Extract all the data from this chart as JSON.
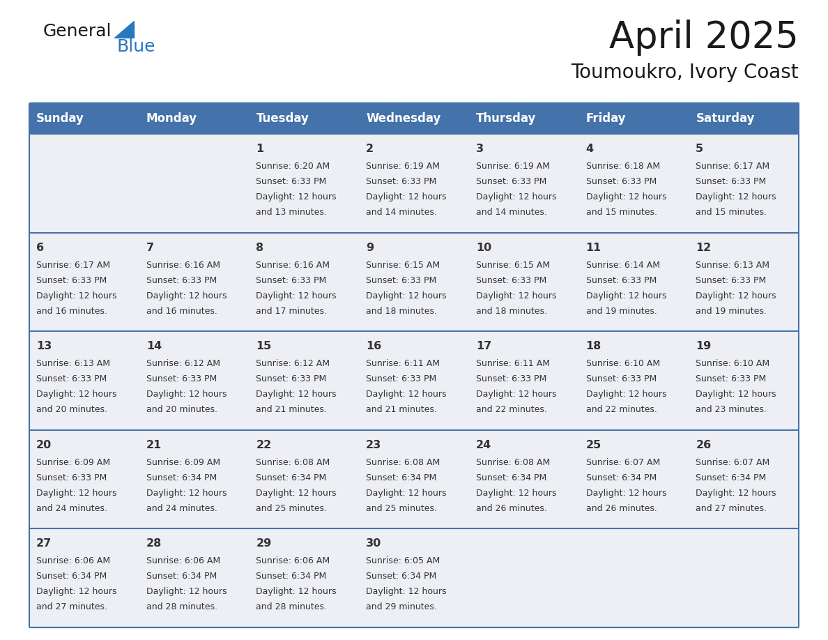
{
  "title": "April 2025",
  "subtitle": "Toumoukro, Ivory Coast",
  "days_of_week": [
    "Sunday",
    "Monday",
    "Tuesday",
    "Wednesday",
    "Thursday",
    "Friday",
    "Saturday"
  ],
  "header_bg": "#4472aa",
  "header_text": "#ffffff",
  "cell_bg": "#eeeff4",
  "cell_bg_empty": "#eeeff4",
  "border_color": "#4472aa",
  "text_color": "#333333",
  "title_color": "#1a1a1a",
  "logo_general_color": "#1a1a1a",
  "logo_blue_color": "#2878c0",
  "logo_triangle_color": "#2878c0",
  "calendar_data": [
    [
      {
        "day": "",
        "sunrise": "",
        "sunset": "",
        "daylight": ""
      },
      {
        "day": "",
        "sunrise": "",
        "sunset": "",
        "daylight": ""
      },
      {
        "day": "1",
        "sunrise": "Sunrise: 6:20 AM",
        "sunset": "Sunset: 6:33 PM",
        "daylight": "Daylight: 12 hours\nand 13 minutes."
      },
      {
        "day": "2",
        "sunrise": "Sunrise: 6:19 AM",
        "sunset": "Sunset: 6:33 PM",
        "daylight": "Daylight: 12 hours\nand 14 minutes."
      },
      {
        "day": "3",
        "sunrise": "Sunrise: 6:19 AM",
        "sunset": "Sunset: 6:33 PM",
        "daylight": "Daylight: 12 hours\nand 14 minutes."
      },
      {
        "day": "4",
        "sunrise": "Sunrise: 6:18 AM",
        "sunset": "Sunset: 6:33 PM",
        "daylight": "Daylight: 12 hours\nand 15 minutes."
      },
      {
        "day": "5",
        "sunrise": "Sunrise: 6:17 AM",
        "sunset": "Sunset: 6:33 PM",
        "daylight": "Daylight: 12 hours\nand 15 minutes."
      }
    ],
    [
      {
        "day": "6",
        "sunrise": "Sunrise: 6:17 AM",
        "sunset": "Sunset: 6:33 PM",
        "daylight": "Daylight: 12 hours\nand 16 minutes."
      },
      {
        "day": "7",
        "sunrise": "Sunrise: 6:16 AM",
        "sunset": "Sunset: 6:33 PM",
        "daylight": "Daylight: 12 hours\nand 16 minutes."
      },
      {
        "day": "8",
        "sunrise": "Sunrise: 6:16 AM",
        "sunset": "Sunset: 6:33 PM",
        "daylight": "Daylight: 12 hours\nand 17 minutes."
      },
      {
        "day": "9",
        "sunrise": "Sunrise: 6:15 AM",
        "sunset": "Sunset: 6:33 PM",
        "daylight": "Daylight: 12 hours\nand 18 minutes."
      },
      {
        "day": "10",
        "sunrise": "Sunrise: 6:15 AM",
        "sunset": "Sunset: 6:33 PM",
        "daylight": "Daylight: 12 hours\nand 18 minutes."
      },
      {
        "day": "11",
        "sunrise": "Sunrise: 6:14 AM",
        "sunset": "Sunset: 6:33 PM",
        "daylight": "Daylight: 12 hours\nand 19 minutes."
      },
      {
        "day": "12",
        "sunrise": "Sunrise: 6:13 AM",
        "sunset": "Sunset: 6:33 PM",
        "daylight": "Daylight: 12 hours\nand 19 minutes."
      }
    ],
    [
      {
        "day": "13",
        "sunrise": "Sunrise: 6:13 AM",
        "sunset": "Sunset: 6:33 PM",
        "daylight": "Daylight: 12 hours\nand 20 minutes."
      },
      {
        "day": "14",
        "sunrise": "Sunrise: 6:12 AM",
        "sunset": "Sunset: 6:33 PM",
        "daylight": "Daylight: 12 hours\nand 20 minutes."
      },
      {
        "day": "15",
        "sunrise": "Sunrise: 6:12 AM",
        "sunset": "Sunset: 6:33 PM",
        "daylight": "Daylight: 12 hours\nand 21 minutes."
      },
      {
        "day": "16",
        "sunrise": "Sunrise: 6:11 AM",
        "sunset": "Sunset: 6:33 PM",
        "daylight": "Daylight: 12 hours\nand 21 minutes."
      },
      {
        "day": "17",
        "sunrise": "Sunrise: 6:11 AM",
        "sunset": "Sunset: 6:33 PM",
        "daylight": "Daylight: 12 hours\nand 22 minutes."
      },
      {
        "day": "18",
        "sunrise": "Sunrise: 6:10 AM",
        "sunset": "Sunset: 6:33 PM",
        "daylight": "Daylight: 12 hours\nand 22 minutes."
      },
      {
        "day": "19",
        "sunrise": "Sunrise: 6:10 AM",
        "sunset": "Sunset: 6:33 PM",
        "daylight": "Daylight: 12 hours\nand 23 minutes."
      }
    ],
    [
      {
        "day": "20",
        "sunrise": "Sunrise: 6:09 AM",
        "sunset": "Sunset: 6:33 PM",
        "daylight": "Daylight: 12 hours\nand 24 minutes."
      },
      {
        "day": "21",
        "sunrise": "Sunrise: 6:09 AM",
        "sunset": "Sunset: 6:34 PM",
        "daylight": "Daylight: 12 hours\nand 24 minutes."
      },
      {
        "day": "22",
        "sunrise": "Sunrise: 6:08 AM",
        "sunset": "Sunset: 6:34 PM",
        "daylight": "Daylight: 12 hours\nand 25 minutes."
      },
      {
        "day": "23",
        "sunrise": "Sunrise: 6:08 AM",
        "sunset": "Sunset: 6:34 PM",
        "daylight": "Daylight: 12 hours\nand 25 minutes."
      },
      {
        "day": "24",
        "sunrise": "Sunrise: 6:08 AM",
        "sunset": "Sunset: 6:34 PM",
        "daylight": "Daylight: 12 hours\nand 26 minutes."
      },
      {
        "day": "25",
        "sunrise": "Sunrise: 6:07 AM",
        "sunset": "Sunset: 6:34 PM",
        "daylight": "Daylight: 12 hours\nand 26 minutes."
      },
      {
        "day": "26",
        "sunrise": "Sunrise: 6:07 AM",
        "sunset": "Sunset: 6:34 PM",
        "daylight": "Daylight: 12 hours\nand 27 minutes."
      }
    ],
    [
      {
        "day": "27",
        "sunrise": "Sunrise: 6:06 AM",
        "sunset": "Sunset: 6:34 PM",
        "daylight": "Daylight: 12 hours\nand 27 minutes."
      },
      {
        "day": "28",
        "sunrise": "Sunrise: 6:06 AM",
        "sunset": "Sunset: 6:34 PM",
        "daylight": "Daylight: 12 hours\nand 28 minutes."
      },
      {
        "day": "29",
        "sunrise": "Sunrise: 6:06 AM",
        "sunset": "Sunset: 6:34 PM",
        "daylight": "Daylight: 12 hours\nand 28 minutes."
      },
      {
        "day": "30",
        "sunrise": "Sunrise: 6:05 AM",
        "sunset": "Sunset: 6:34 PM",
        "daylight": "Daylight: 12 hours\nand 29 minutes."
      },
      {
        "day": "",
        "sunrise": "",
        "sunset": "",
        "daylight": ""
      },
      {
        "day": "",
        "sunrise": "",
        "sunset": "",
        "daylight": ""
      },
      {
        "day": "",
        "sunrise": "",
        "sunset": "",
        "daylight": ""
      }
    ]
  ]
}
